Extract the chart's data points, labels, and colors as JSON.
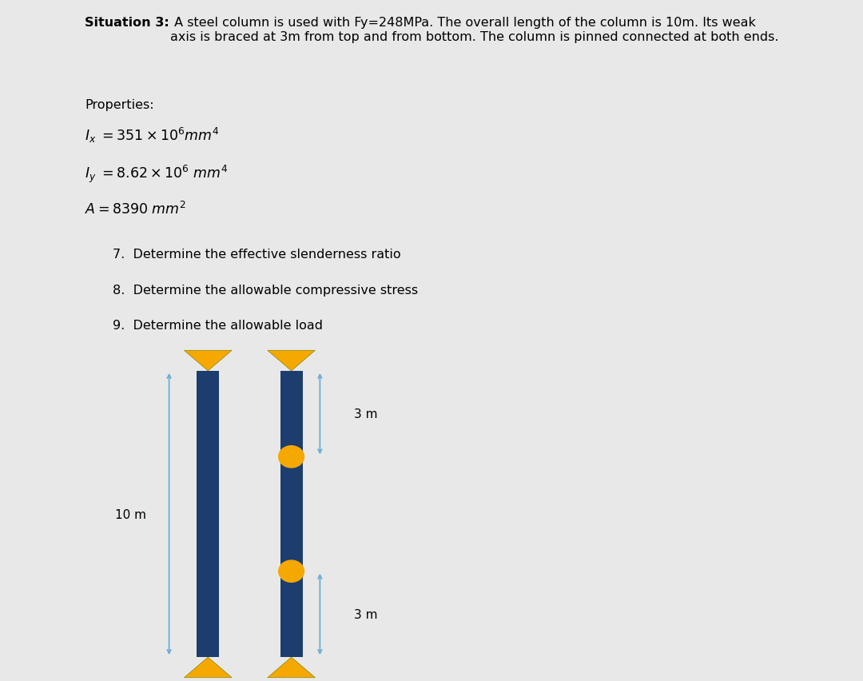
{
  "background_color": "#e8e8e8",
  "inner_background_color": "#ffffff",
  "column_color": "#1c3d6e",
  "pin_color": "#f5a800",
  "arrow_color": "#6aaed6",
  "title_bold": "Situation 3:",
  "title_rest": " A steel column is used with Fy=248MPa. The overall length of the column is 10m. Its weak\naxis is braced at 3m from top and from bottom. The column is pinned connected at both ends.",
  "properties_label": "Properties:",
  "questions": [
    "7.  Determine the effective slenderness ratio",
    "8.  Determine the allowable compressive stress",
    "9.  Determine the allowable load"
  ],
  "label_10m": "10 m",
  "label_3m_top": "3 m",
  "label_3m_bot": "3 m"
}
